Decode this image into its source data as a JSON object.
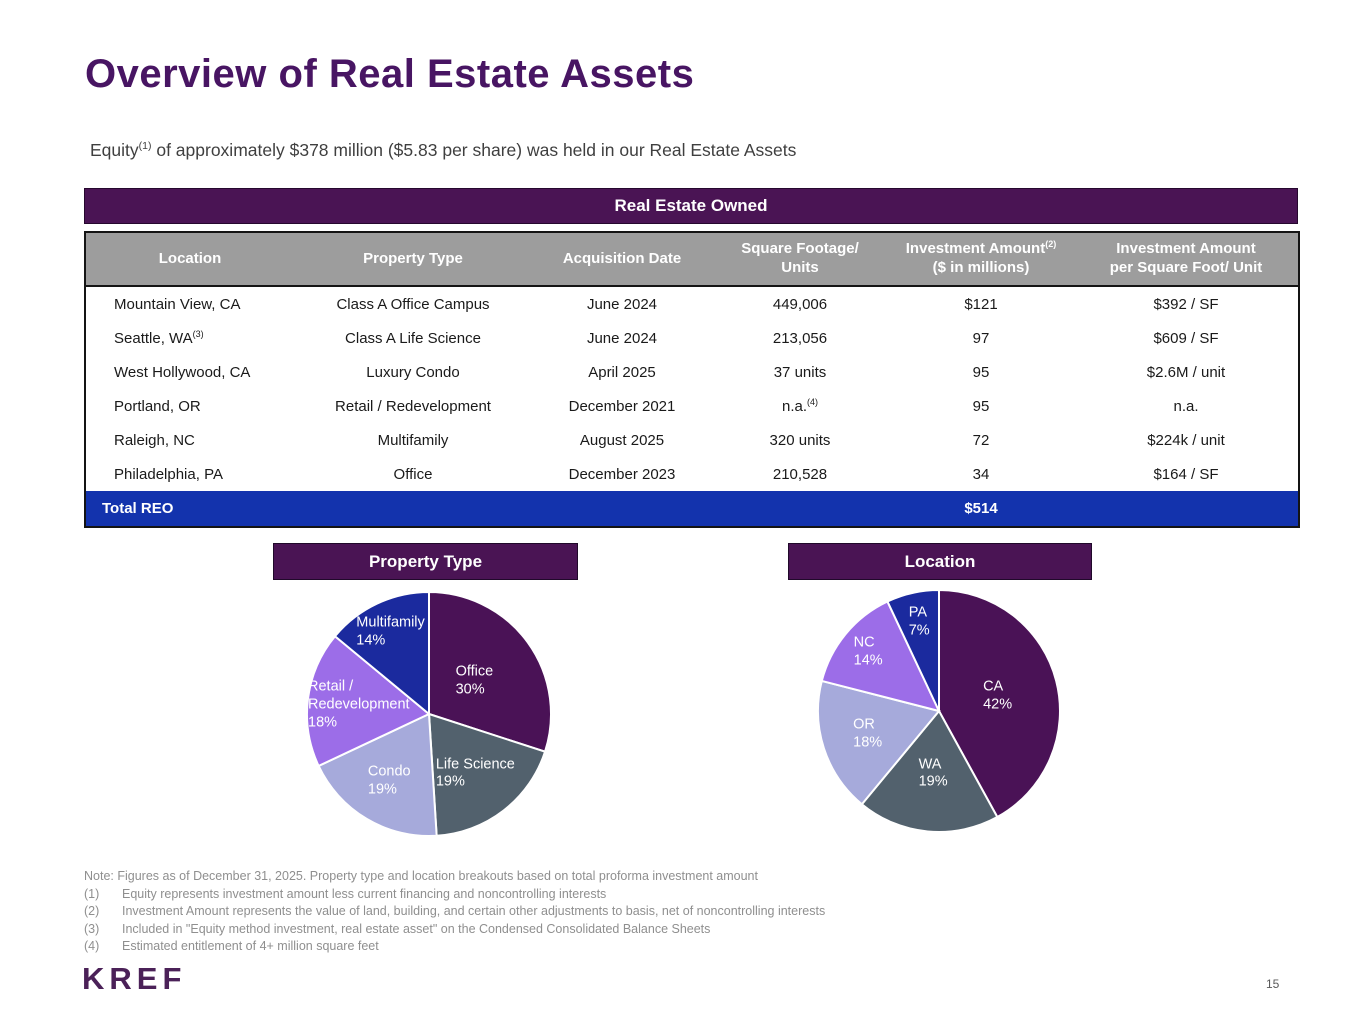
{
  "title": "Overview of Real Estate Assets",
  "subtitle": "Equity^{(1)} of approximately $378 million ($5.83 per share) was held in our Real Estate Assets",
  "table": {
    "title": "Real Estate Owned",
    "columns": [
      {
        "label": "Location"
      },
      {
        "label": "Property Type"
      },
      {
        "label": "Acquisition Date"
      },
      {
        "label": "Square Footage/\nUnits"
      },
      {
        "label": "Investment Amount^{(2)}\n($ in millions)"
      },
      {
        "label": "Investment Amount\nper Square Foot/ Unit"
      }
    ],
    "rows": [
      [
        "Mountain View, CA",
        "Class A Office Campus",
        "June 2024",
        "449,006",
        "$121",
        "$392 / SF"
      ],
      [
        "Seattle, WA^{(3)}",
        "Class A Life Science",
        "June 2024",
        "213,056",
        "97",
        "$609 / SF"
      ],
      [
        "West Hollywood, CA",
        "Luxury Condo",
        "April 2025",
        "37 units",
        "95",
        "$2.6M / unit"
      ],
      [
        "Portland, OR",
        "Retail / Redevelopment",
        "December 2021",
        "n.a.^{(4)}",
        "95",
        "n.a."
      ],
      [
        "Raleigh, NC",
        "Multifamily",
        "August 2025",
        "320 units",
        "72",
        "$224k / unit"
      ],
      [
        "Philadelphia, PA",
        "Office",
        "December 2023",
        "210,528",
        "34",
        "$164 / SF"
      ]
    ],
    "total": {
      "label": "Total REO",
      "value": "$514"
    }
  },
  "chart_data": [
    {
      "type": "pie",
      "title": "Property Type",
      "legend_position": "inside",
      "slices": [
        {
          "name": "Office",
          "value": 30,
          "label_lines": [
            "Office",
            "30%"
          ],
          "color": "#4a1256",
          "lr": 0.46
        },
        {
          "name": "Life Science",
          "value": 19,
          "label_lines": [
            "Life Science",
            "19%"
          ],
          "color": "#52616d",
          "lr": 0.62
        },
        {
          "name": "Condo",
          "value": 19,
          "label_lines": [
            "Condo",
            "19%"
          ],
          "color": "#a6aadb",
          "lr": 0.64
        },
        {
          "name": "Retail / Redevelopment",
          "value": 18,
          "label_lines": [
            "Retail /",
            "Redevelopment",
            "18%"
          ],
          "color": "#9c6de8",
          "lr": 0.58
        },
        {
          "name": "Multifamily",
          "value": 14,
          "label_lines": [
            "Multifamily",
            "14%"
          ],
          "color": "#1b2a9e",
          "lr": 0.74
        }
      ]
    },
    {
      "type": "pie",
      "title": "Location",
      "legend_position": "inside",
      "slices": [
        {
          "name": "CA",
          "value": 42,
          "label_lines": [
            "CA",
            "42%"
          ],
          "color": "#4a1256",
          "lr": 0.5
        },
        {
          "name": "WA",
          "value": 19,
          "label_lines": [
            "WA",
            "19%"
          ],
          "color": "#52616d",
          "lr": 0.52
        },
        {
          "name": "OR",
          "value": 18,
          "label_lines": [
            "OR",
            "18%"
          ],
          "color": "#a6aadb",
          "lr": 0.62
        },
        {
          "name": "NC",
          "value": 14,
          "label_lines": [
            "NC",
            "14%"
          ],
          "color": "#9c6de8",
          "lr": 0.76
        },
        {
          "name": "PA",
          "value": 7,
          "label_lines": [
            "PA",
            "7%"
          ],
          "color": "#1b2a9e",
          "lr": 0.75
        }
      ]
    }
  ],
  "notes": {
    "note": "Note: Figures as of December 31, 2025. Property type and location breakouts based on total proforma investment amount",
    "footnotes": [
      {
        "num": "(1)",
        "text": "Equity represents investment amount less current financing and noncontrolling interests"
      },
      {
        "num": "(2)",
        "text": "Investment Amount represents the value of land, building, and certain other adjustments to basis, net of noncontrolling interests"
      },
      {
        "num": "(3)",
        "text": "Included in \"Equity method investment, real estate asset\" on the Condensed Consolidated Balance Sheets"
      },
      {
        "num": "(4)",
        "text": "Estimated entitlement of 4+ million square feet"
      }
    ]
  },
  "footer": {
    "logo": "KREF",
    "page_number": "15"
  },
  "colors": {
    "title_purple": "#481563",
    "band_purple": "#4a1454",
    "header_gray": "#9d9d9d",
    "total_blue": "#1333ad",
    "logo_purple": "#4b2158"
  }
}
